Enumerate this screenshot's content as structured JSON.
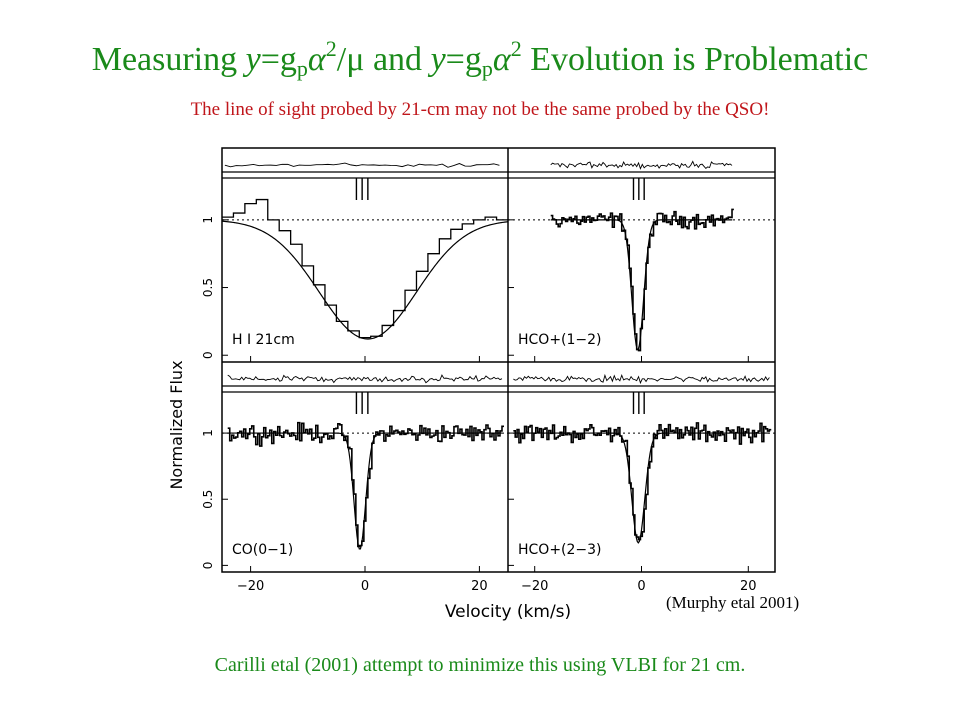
{
  "title": {
    "prefix": "Measuring ",
    "y1": "y",
    "eq1": "=g",
    "sub1": "p",
    "alpha1": "α",
    "sup1": "2",
    "over": "/μ",
    "mid": " and ",
    "y2": "y",
    "eq2": "=g",
    "sub2": "p",
    "alpha2": "α",
    "sup2": "2",
    "suffix": " Evolution  is Problematic"
  },
  "subtitle": "The line of sight probed by 21-cm may not be the same probed by the QSO!",
  "credit": "(Murphy etal 2001)",
  "footer": "Carilli etal (2001) attempt to minimize this using VLBI for 21 cm.",
  "colors": {
    "title": "#1a8a1a",
    "subtitle": "#c0161b",
    "footer": "#1a8a1a"
  },
  "chart_data": {
    "type": "line",
    "ylabel": "Normalized Flux",
    "xlabel": "Velocity (km/s)",
    "xlim": [
      -25,
      25
    ],
    "ylim": [
      -0.05,
      1.25
    ],
    "xticks": [
      -20,
      0,
      20
    ],
    "yticks": [
      0,
      0.5,
      1
    ],
    "xtick_labels": [
      "−20",
      "0",
      "20"
    ],
    "ytick_labels": [
      "0",
      "0.5",
      "1"
    ],
    "component_marks_x": [
      -1.5,
      -0.5,
      0.5
    ],
    "panels": [
      {
        "label": "H I 21cm",
        "x": [
          -24,
          -22,
          -20,
          -18,
          -16,
          -14,
          -12,
          -10,
          -8,
          -6,
          -4,
          -2,
          0,
          2,
          4,
          6,
          8,
          10,
          12,
          14,
          16,
          18,
          20,
          22,
          24
        ],
        "data": [
          1.02,
          1.05,
          1.12,
          1.15,
          1.0,
          0.92,
          0.82,
          0.66,
          0.52,
          0.37,
          0.25,
          0.18,
          0.13,
          0.14,
          0.22,
          0.33,
          0.48,
          0.62,
          0.75,
          0.86,
          0.93,
          0.97,
          1.0,
          1.02,
          1.0
        ],
        "fit_center": 0.5,
        "fit_depth": 0.88,
        "fit_sigma": 8.5
      },
      {
        "label": "HCO+(1−2)",
        "xrange": [
          -17,
          17
        ],
        "noise": 0.05,
        "fit_center": -0.7,
        "fit_depth": 0.96,
        "fit_sigma": 1.1
      },
      {
        "label": "CO(0−1)",
        "xrange": [
          -24,
          24
        ],
        "noise": 0.06,
        "fit_center": -0.9,
        "fit_depth": 0.88,
        "fit_sigma": 1.0
      },
      {
        "label": "HCO+(2−3)",
        "xrange": [
          -24,
          24
        ],
        "noise": 0.06,
        "fit_center": -0.6,
        "fit_depth": 0.83,
        "fit_sigma": 1.2
      }
    ]
  }
}
